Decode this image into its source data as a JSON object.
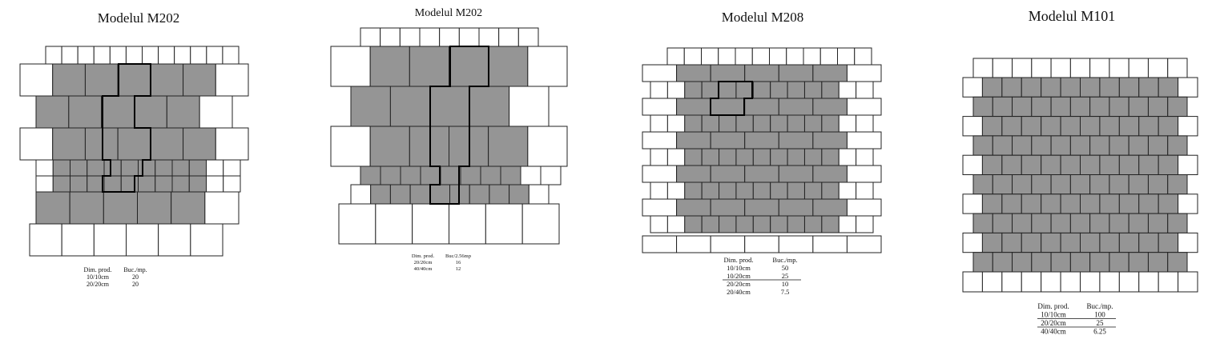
{
  "panels": [
    {
      "title": "Modelul M202",
      "table": {
        "header": [
          "Dim. prod.",
          "Buc./mp."
        ],
        "rows": [
          [
            "10/10cm",
            "20"
          ],
          [
            "20/20cm",
            "20"
          ]
        ]
      }
    },
    {
      "title": "Modelul M202",
      "table": {
        "header": [
          "Dim. prod.",
          "Buc/2.56mp"
        ],
        "rows": [
          [
            "20/20cm",
            "16"
          ],
          [
            "40/40cm",
            "12"
          ]
        ]
      }
    },
    {
      "title": "Modelul M208",
      "table": {
        "header": [
          "Dim. prod.",
          "Buc./mp."
        ],
        "rows": [
          [
            "10/10cm",
            "50"
          ],
          [
            "10/20cm",
            "25"
          ],
          [
            "20/20cm",
            "10"
          ],
          [
            "20/40cm",
            "7.5"
          ]
        ]
      }
    },
    {
      "title": "Modelul M101",
      "table": {
        "header": [
          "Dim. prod.",
          "Buc./mp."
        ],
        "rows": [
          [
            "10/10cm",
            "100"
          ],
          [
            "20/20cm",
            "25"
          ],
          [
            "40/40cm",
            "6.25"
          ]
        ]
      }
    }
  ]
}
